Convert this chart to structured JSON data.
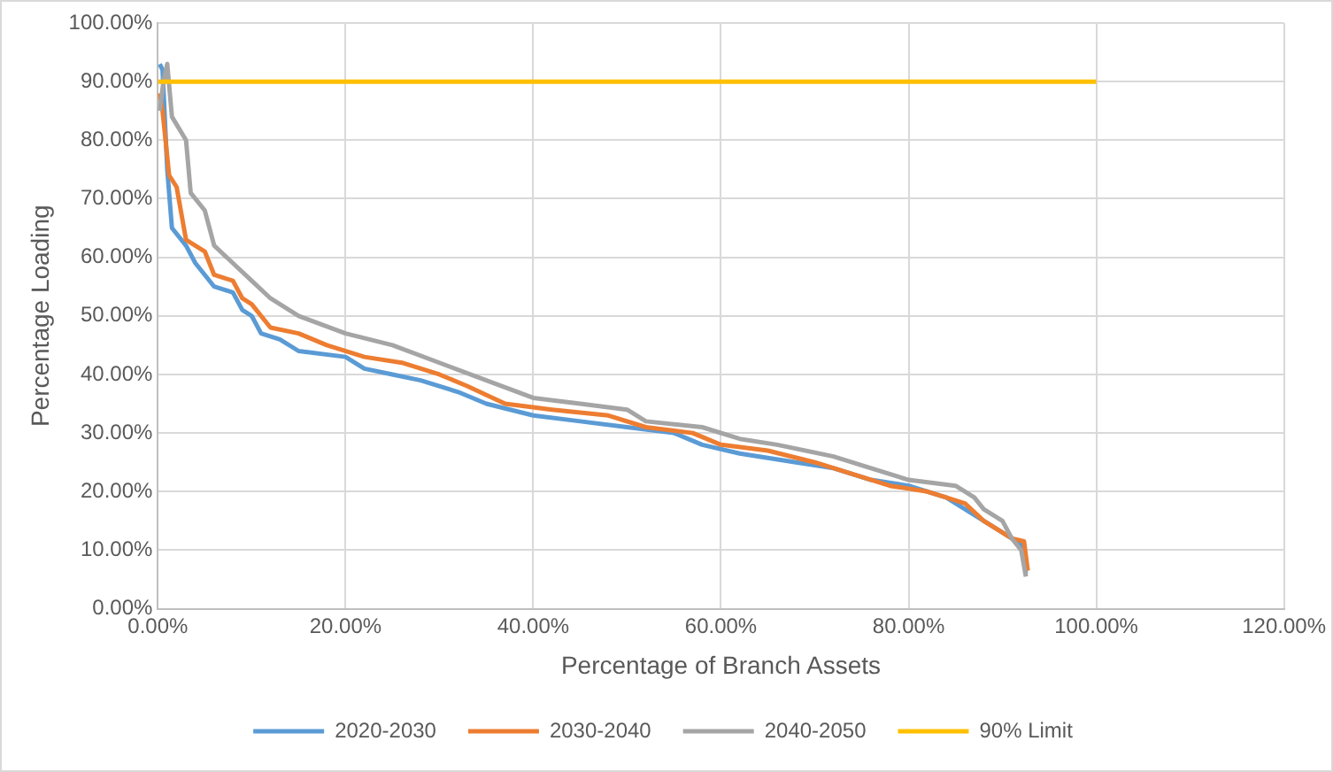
{
  "chart_data": {
    "type": "line",
    "xlabel": "Percentage of Branch Assets",
    "ylabel": "Percentage Loading",
    "xlim": [
      0,
      120
    ],
    "ylim": [
      0,
      100
    ],
    "xticks": [
      {
        "value": 0,
        "label": "0.00%"
      },
      {
        "value": 20,
        "label": "20.00%"
      },
      {
        "value": 40,
        "label": "40.00%"
      },
      {
        "value": 60,
        "label": "60.00%"
      },
      {
        "value": 80,
        "label": "80.00%"
      },
      {
        "value": 100,
        "label": "100.00%"
      },
      {
        "value": 120,
        "label": "120.00%"
      }
    ],
    "yticks": [
      {
        "value": 0,
        "label": "0.00%"
      },
      {
        "value": 10,
        "label": "10.00%"
      },
      {
        "value": 20,
        "label": "20.00%"
      },
      {
        "value": 30,
        "label": "30.00%"
      },
      {
        "value": 40,
        "label": "40.00%"
      },
      {
        "value": 50,
        "label": "50.00%"
      },
      {
        "value": 60,
        "label": "60.00%"
      },
      {
        "value": 70,
        "label": "70.00%"
      },
      {
        "value": 80,
        "label": "80.00%"
      },
      {
        "value": 90,
        "label": "90.00%"
      },
      {
        "value": 100,
        "label": "100.00%"
      }
    ],
    "grid": true,
    "legend": "bottom",
    "marker": "none",
    "line_style": "solid",
    "series": [
      {
        "name": "2020-2030",
        "color": "#5b9bd5",
        "x": [
          0.2,
          0.5,
          1,
          1.5,
          3,
          4,
          5,
          6,
          8,
          9,
          10,
          11,
          13,
          15,
          20,
          22,
          25,
          28,
          32,
          35,
          40,
          45,
          50,
          55,
          58,
          62,
          68,
          72,
          76,
          80,
          84,
          86,
          89,
          91,
          92,
          92.5
        ],
        "values": [
          93,
          92,
          75,
          65,
          62,
          59,
          57,
          55,
          54,
          51,
          50,
          47,
          46,
          44,
          43,
          41,
          40,
          39,
          37,
          35,
          33,
          32,
          31,
          30,
          28,
          26.5,
          25,
          24,
          22,
          21,
          19,
          17,
          14,
          12,
          11,
          6
        ]
      },
      {
        "name": "2030-2040",
        "color": "#ed7d31",
        "x": [
          0.2,
          0.5,
          1.2,
          2,
          3,
          5,
          6,
          8,
          9,
          10,
          12,
          15,
          18,
          22,
          26,
          30,
          33,
          37,
          42,
          48,
          52,
          57,
          60,
          65,
          70,
          74,
          78,
          82,
          84,
          86,
          88,
          91,
          92.3,
          92.7
        ],
        "values": [
          88,
          85,
          74,
          72,
          63,
          61,
          57,
          56,
          53,
          52,
          48,
          47,
          45,
          43,
          42,
          40,
          38,
          35,
          34,
          33,
          31,
          30,
          28,
          27,
          25,
          23,
          21,
          20,
          19,
          18,
          15,
          12,
          11.5,
          6.5
        ]
      },
      {
        "name": "2040-2050",
        "color": "#a5a5a5",
        "x": [
          0.2,
          0.6,
          1,
          1.5,
          3,
          3.5,
          5,
          6,
          8,
          10,
          12,
          15,
          20,
          25,
          30,
          35,
          40,
          45,
          50,
          52,
          58,
          62,
          66,
          72,
          76,
          80,
          85,
          87,
          88,
          90,
          91,
          92,
          92.5
        ],
        "values": [
          85,
          90,
          93,
          84,
          80,
          71,
          68,
          62,
          59,
          56,
          53,
          50,
          47,
          45,
          42,
          39,
          36,
          35,
          34,
          32,
          31,
          29,
          28,
          26,
          24,
          22,
          21,
          19,
          17,
          15,
          12,
          10,
          5.5
        ]
      },
      {
        "name": "90% Limit",
        "color": "#ffc000",
        "x": [
          0,
          100
        ],
        "values": [
          90,
          90
        ]
      }
    ]
  }
}
